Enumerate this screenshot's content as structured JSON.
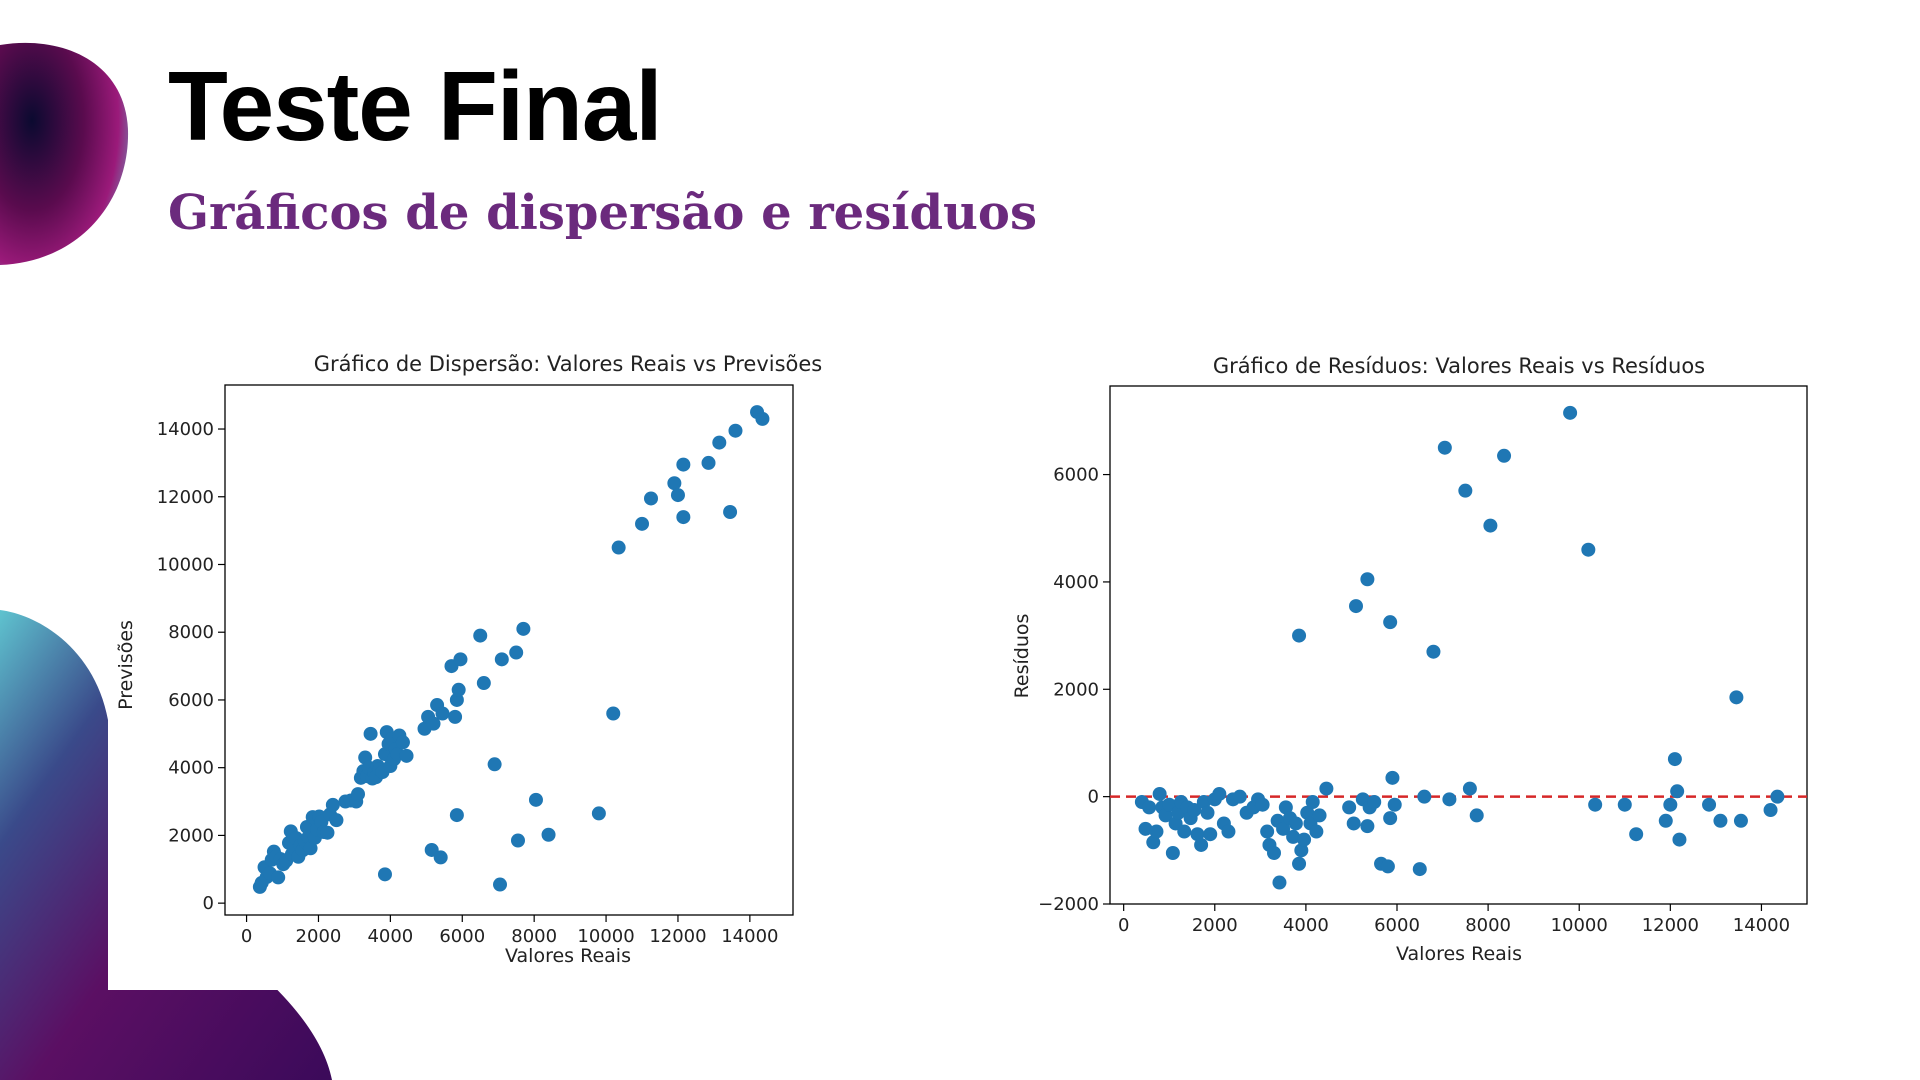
{
  "slide": {
    "title": "Teste Final",
    "subtitle": "Gráficos de dispersão e resíduos"
  },
  "colors": {
    "accent": "#6b2a7d",
    "points": "#1f77b4",
    "zero_line": "#d62728"
  },
  "chart_data": [
    {
      "type": "scatter",
      "title": "Gráfico de Dispersão: Valores Reais vs Previsões",
      "xlabel": "Valores Reais",
      "ylabel": "Previsões",
      "xlim": [
        -600,
        15200
      ],
      "ylim": [
        -350,
        15300
      ],
      "xticks": [
        0,
        2000,
        4000,
        6000,
        8000,
        10000,
        12000,
        14000
      ],
      "yticks": [
        0,
        2000,
        4000,
        6000,
        8000,
        10000,
        12000,
        14000
      ],
      "grid": false,
      "points": [
        [
          370,
          480
        ],
        [
          420,
          600
        ],
        [
          500,
          1060
        ],
        [
          560,
          770
        ],
        [
          650,
          880
        ],
        [
          700,
          1280
        ],
        [
          760,
          1520
        ],
        [
          820,
          1380
        ],
        [
          880,
          760
        ],
        [
          950,
          1300
        ],
        [
          1020,
          1150
        ],
        [
          1100,
          1250
        ],
        [
          1180,
          1780
        ],
        [
          1230,
          2120
        ],
        [
          1260,
          1440
        ],
        [
          1320,
          1620
        ],
        [
          1380,
          1920
        ],
        [
          1440,
          1370
        ],
        [
          1500,
          1700
        ],
        [
          1560,
          1560
        ],
        [
          1620,
          1820
        ],
        [
          1680,
          2250
        ],
        [
          1720,
          1950
        ],
        [
          1780,
          1620
        ],
        [
          1840,
          2540
        ],
        [
          1900,
          1930
        ],
        [
          1960,
          2180
        ],
        [
          2020,
          2560
        ],
        [
          2080,
          2400
        ],
        [
          2150,
          2100
        ],
        [
          2250,
          2080
        ],
        [
          2320,
          2620
        ],
        [
          2400,
          2900
        ],
        [
          2500,
          2450
        ],
        [
          2750,
          3000
        ],
        [
          2900,
          3030
        ],
        [
          3050,
          3000
        ],
        [
          3100,
          3220
        ],
        [
          3180,
          3700
        ],
        [
          3250,
          3900
        ],
        [
          3300,
          4300
        ],
        [
          3350,
          3750
        ],
        [
          3400,
          4000
        ],
        [
          3450,
          5000
        ],
        [
          3500,
          3680
        ],
        [
          3550,
          3850
        ],
        [
          3600,
          3720
        ],
        [
          3650,
          4050
        ],
        [
          3700,
          3950
        ],
        [
          3780,
          3870
        ],
        [
          3850,
          4400
        ],
        [
          3900,
          5050
        ],
        [
          3950,
          4700
        ],
        [
          4000,
          4050
        ],
        [
          4050,
          4850
        ],
        [
          4100,
          4250
        ],
        [
          4150,
          4550
        ],
        [
          4200,
          4400
        ],
        [
          4250,
          4950
        ],
        [
          4350,
          4750
        ],
        [
          4450,
          4350
        ],
        [
          4950,
          5150
        ],
        [
          5050,
          5500
        ],
        [
          5200,
          5300
        ],
        [
          5300,
          5850
        ],
        [
          5450,
          5600
        ],
        [
          5700,
          7000
        ],
        [
          5800,
          5500
        ],
        [
          5850,
          6000
        ],
        [
          5900,
          6300
        ],
        [
          5950,
          7200
        ],
        [
          6500,
          7900
        ],
        [
          6600,
          6500
        ],
        [
          6900,
          4100
        ],
        [
          7100,
          7200
        ],
        [
          7500,
          7400
        ],
        [
          7700,
          8100
        ],
        [
          5850,
          2600
        ],
        [
          3850,
          850
        ],
        [
          5150,
          1570
        ],
        [
          5400,
          1350
        ],
        [
          7050,
          550
        ],
        [
          7550,
          1850
        ],
        [
          8050,
          3050
        ],
        [
          8400,
          2020
        ],
        [
          9800,
          2650
        ],
        [
          10200,
          5600
        ],
        [
          10350,
          10500
        ],
        [
          11000,
          11200
        ],
        [
          11250,
          11950
        ],
        [
          11900,
          12400
        ],
        [
          12000,
          12050
        ],
        [
          12150,
          11400
        ],
        [
          12150,
          12950
        ],
        [
          12850,
          13000
        ],
        [
          13150,
          13600
        ],
        [
          13450,
          11550
        ],
        [
          13600,
          13950
        ],
        [
          14200,
          14500
        ],
        [
          14350,
          14300
        ]
      ]
    },
    {
      "type": "scatter",
      "title": "Gráfico de Resíduos: Valores Reais vs Resíduos",
      "xlabel": "Valores Reais",
      "ylabel": "Resíduos",
      "xlim": [
        -300,
        15000
      ],
      "ylim": [
        -2000,
        7650
      ],
      "xticks": [
        0,
        2000,
        4000,
        6000,
        8000,
        10000,
        12000,
        14000
      ],
      "yticks": [
        -2000,
        0,
        2000,
        4000,
        6000
      ],
      "reference_line": {
        "y": 0,
        "style": "dashed"
      },
      "grid": false,
      "points": [
        [
          400,
          -100
        ],
        [
          480,
          -600
        ],
        [
          560,
          -200
        ],
        [
          650,
          -850
        ],
        [
          720,
          -650
        ],
        [
          790,
          50
        ],
        [
          850,
          -200
        ],
        [
          920,
          -350
        ],
        [
          1000,
          -150
        ],
        [
          1080,
          -1050
        ],
        [
          1140,
          -500
        ],
        [
          1200,
          -300
        ],
        [
          1260,
          -100
        ],
        [
          1330,
          -650
        ],
        [
          1400,
          -200
        ],
        [
          1470,
          -400
        ],
        [
          1550,
          -250
        ],
        [
          1620,
          -700
        ],
        [
          1700,
          -900
        ],
        [
          1760,
          -100
        ],
        [
          1840,
          -300
        ],
        [
          1900,
          -700
        ],
        [
          2000,
          -50
        ],
        [
          2100,
          50
        ],
        [
          2200,
          -500
        ],
        [
          2300,
          -650
        ],
        [
          2400,
          -50
        ],
        [
          2550,
          0
        ],
        [
          2700,
          -300
        ],
        [
          2850,
          -200
        ],
        [
          2950,
          -50
        ],
        [
          3050,
          -150
        ],
        [
          3150,
          -650
        ],
        [
          3200,
          -900
        ],
        [
          3300,
          -1050
        ],
        [
          3380,
          -450
        ],
        [
          3420,
          -1600
        ],
        [
          3500,
          -600
        ],
        [
          3560,
          -200
        ],
        [
          3650,
          -400
        ],
        [
          3720,
          -750
        ],
        [
          3780,
          -500
        ],
        [
          3850,
          -1250
        ],
        [
          3900,
          -1000
        ],
        [
          3960,
          -800
        ],
        [
          4030,
          -300
        ],
        [
          4100,
          -500
        ],
        [
          4150,
          -100
        ],
        [
          4230,
          -650
        ],
        [
          4300,
          -350
        ],
        [
          4450,
          150
        ],
        [
          4950,
          -200
        ],
        [
          5050,
          -500
        ],
        [
          5250,
          -50
        ],
        [
          5350,
          -550
        ],
        [
          5400,
          -200
        ],
        [
          5500,
          -100
        ],
        [
          5650,
          -1250
        ],
        [
          5800,
          -1300
        ],
        [
          5850,
          -400
        ],
        [
          5900,
          350
        ],
        [
          5950,
          -150
        ],
        [
          6500,
          -1350
        ],
        [
          6600,
          0
        ],
        [
          7150,
          -50
        ],
        [
          7600,
          150
        ],
        [
          7750,
          -350
        ],
        [
          3850,
          3000
        ],
        [
          5100,
          3550
        ],
        [
          5350,
          4050
        ],
        [
          5850,
          3250
        ],
        [
          6800,
          2700
        ],
        [
          7050,
          6500
        ],
        [
          7500,
          5700
        ],
        [
          8050,
          5050
        ],
        [
          8350,
          6350
        ],
        [
          9800,
          7150
        ],
        [
          10200,
          4600
        ],
        [
          10350,
          -150
        ],
        [
          11000,
          -150
        ],
        [
          11250,
          -700
        ],
        [
          11900,
          -450
        ],
        [
          12000,
          -150
        ],
        [
          12100,
          700
        ],
        [
          12150,
          100
        ],
        [
          12200,
          -800
        ],
        [
          12850,
          -150
        ],
        [
          13100,
          -450
        ],
        [
          13450,
          1850
        ],
        [
          13550,
          -450
        ],
        [
          14200,
          -250
        ],
        [
          14350,
          0
        ]
      ]
    }
  ]
}
